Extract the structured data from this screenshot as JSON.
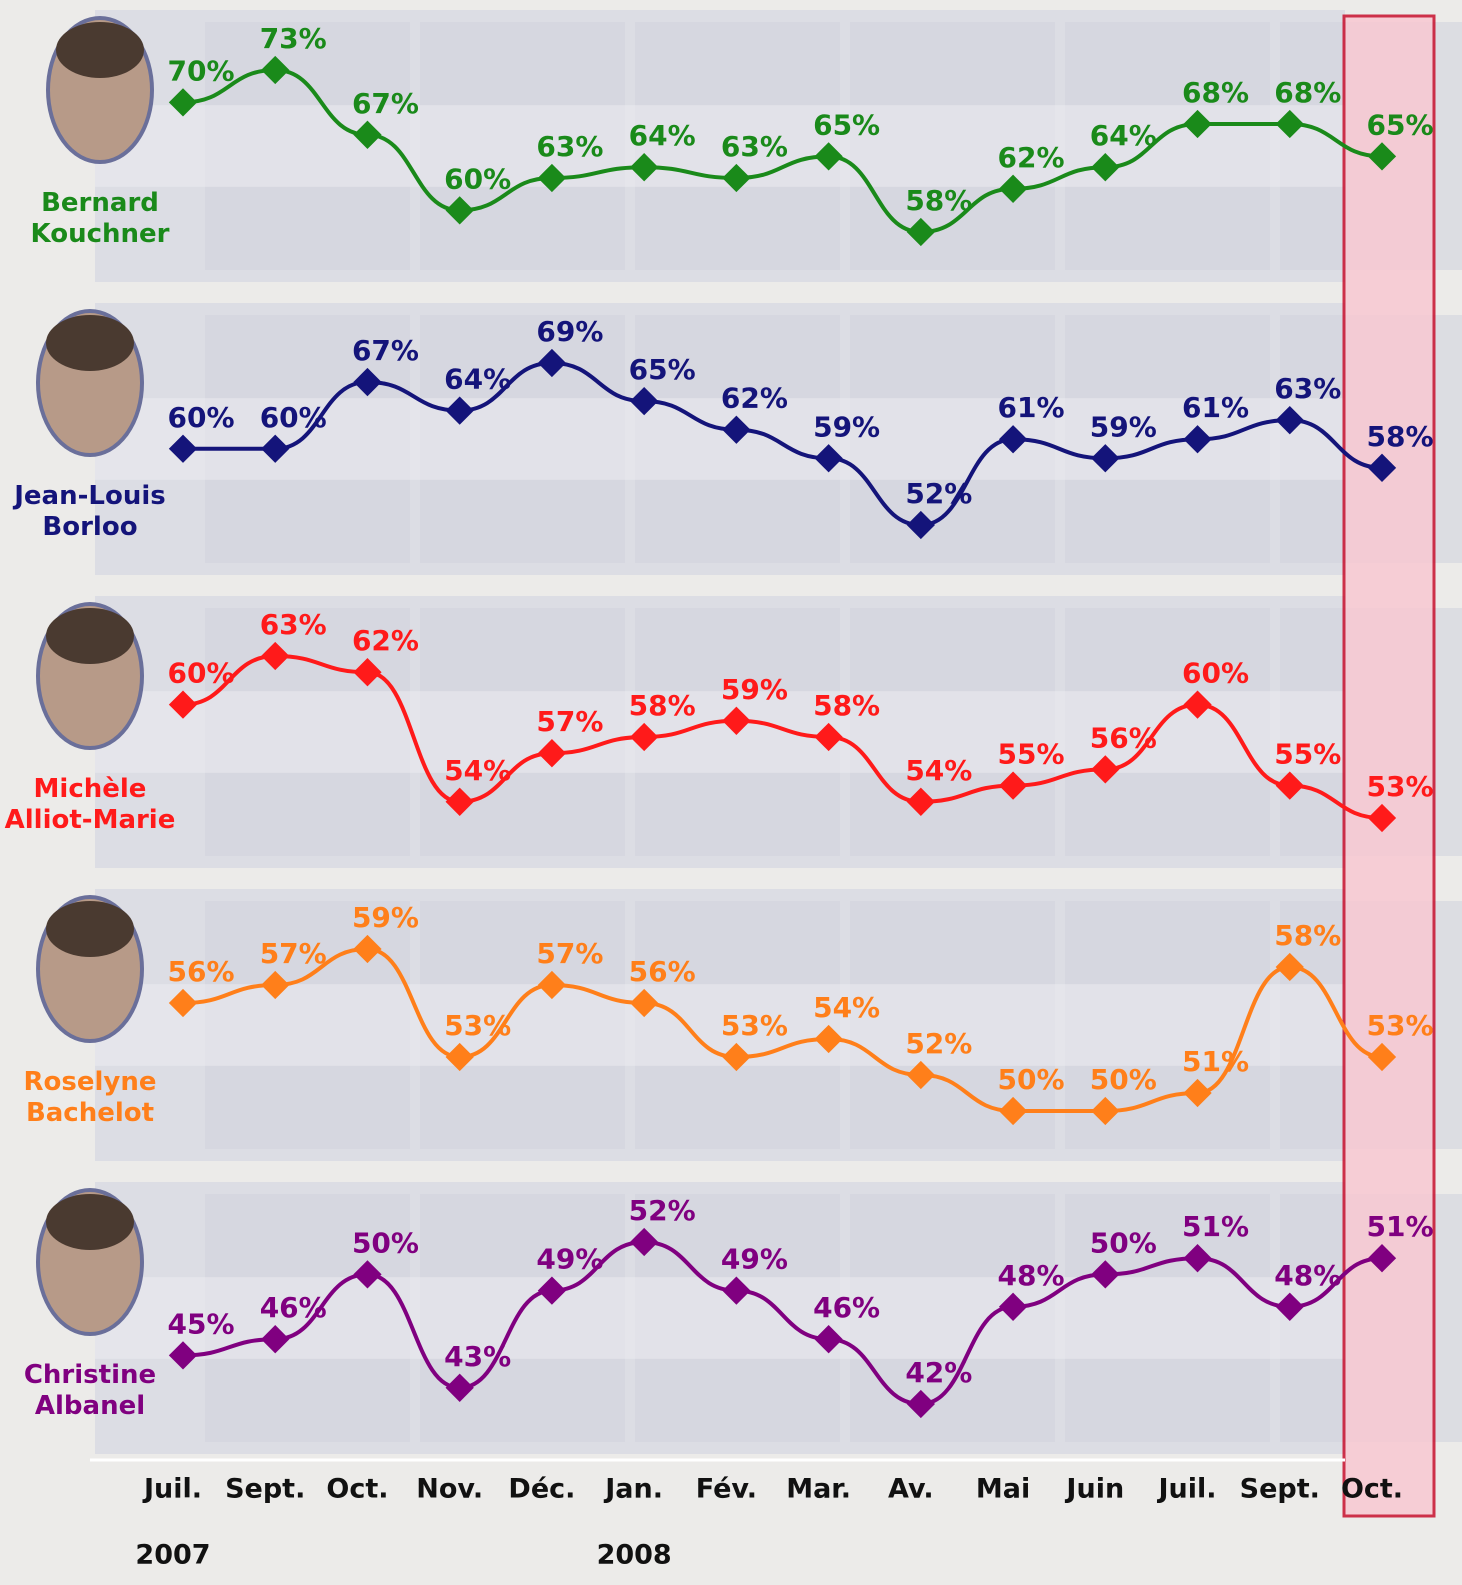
{
  "chart_data": {
    "type": "line",
    "categories": [
      "Juil.",
      "Sept.",
      "Oct.",
      "Nov.",
      "Déc.",
      "Jan.",
      "Fév.",
      "Mar.",
      "Av.",
      "Mai",
      "Juin",
      "Juil.",
      "Sept.",
      "Oct."
    ],
    "years": [
      "2007",
      null,
      null,
      null,
      null,
      "2008",
      null,
      null,
      null,
      null,
      null,
      null,
      null,
      null
    ],
    "highlight_index": 13,
    "series": [
      {
        "name": "Bernard Kouchner",
        "color": "#1a8a1a",
        "values": [
          70,
          73,
          67,
          60,
          63,
          64,
          63,
          65,
          58,
          62,
          64,
          68,
          68,
          65
        ],
        "value_labels": [
          "70%",
          "73%",
          "67%",
          "60%",
          "63%",
          "64%",
          "63%",
          "65%",
          "58%",
          "62%",
          "64%",
          "68%",
          "68%",
          "65%"
        ]
      },
      {
        "name": "Jean-Louis Borloo",
        "color": "#14147a",
        "values": [
          60,
          60,
          67,
          64,
          69,
          65,
          62,
          59,
          52,
          61,
          59,
          61,
          63,
          58
        ],
        "value_labels": [
          "60%",
          "60%",
          "67%",
          "64%",
          "69%",
          "65%",
          "62%",
          "59%",
          "52%",
          "61%",
          "59%",
          "61%",
          "63%",
          "58%"
        ]
      },
      {
        "name": "Michèle Alliot-Marie",
        "color": "#ff1a1a",
        "values": [
          60,
          63,
          62,
          54,
          57,
          58,
          59,
          58,
          54,
          55,
          56,
          60,
          55,
          53
        ],
        "value_labels": [
          "60%",
          "63%",
          "62%",
          "54%",
          "57%",
          "58%",
          "59%",
          "58%",
          "54%",
          "55%",
          "56%",
          "60%",
          "55%",
          "53%"
        ]
      },
      {
        "name": "Roselyne Bachelot",
        "color": "#ff7f1a",
        "values": [
          56,
          57,
          59,
          53,
          57,
          56,
          53,
          54,
          52,
          50,
          50,
          51,
          58,
          53
        ],
        "value_labels": [
          "56%",
          "57%",
          "59%",
          "53%",
          "57%",
          "56%",
          "53%",
          "54%",
          "52%",
          "50%",
          "50%",
          "51%",
          "58%",
          "53%"
        ]
      },
      {
        "name": "Christine Albanel",
        "color": "#800080",
        "values": [
          45,
          46,
          50,
          43,
          49,
          52,
          49,
          46,
          42,
          48,
          50,
          51,
          48,
          51
        ],
        "value_labels": [
          "45%",
          "46%",
          "50%",
          "43%",
          "49%",
          "52%",
          "49%",
          "46%",
          "42%",
          "48%",
          "50%",
          "51%",
          "48%",
          "51%"
        ]
      }
    ]
  }
}
